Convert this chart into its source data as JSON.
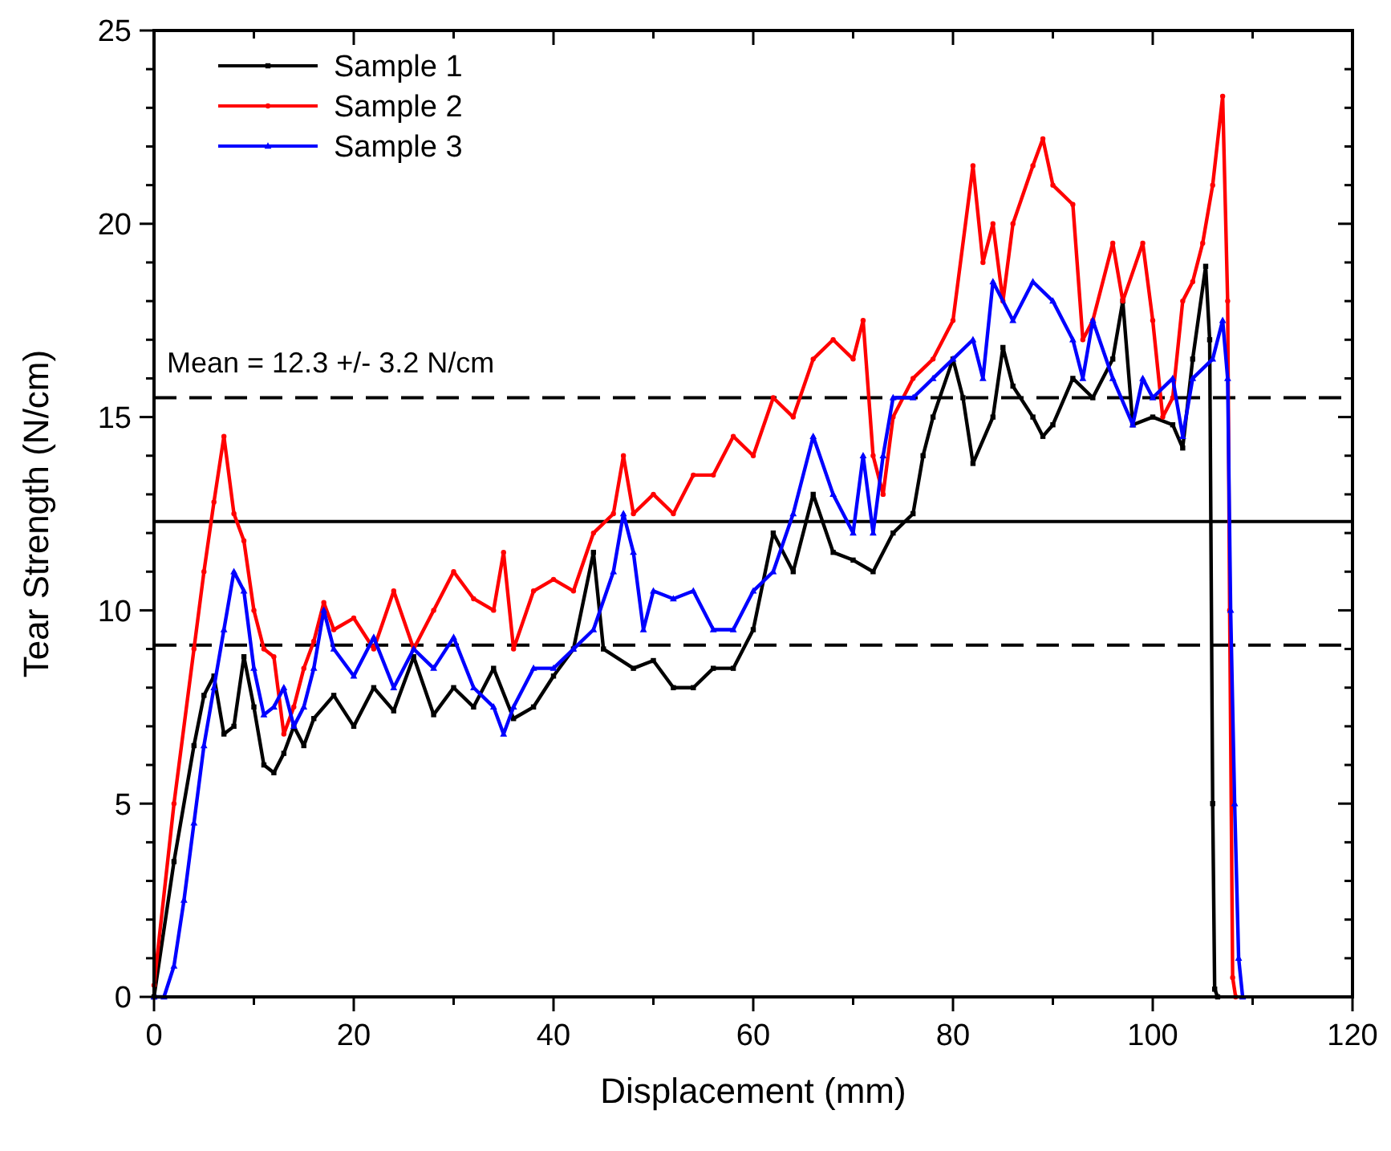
{
  "chart_data": {
    "type": "line",
    "xlabel": "Displacement (mm)",
    "ylabel": "Tear Strength (N/cm)",
    "xlim": [
      0,
      120
    ],
    "xticks": [
      0,
      {
        "value": 10,
        "label": null
      },
      20,
      {
        "value": 30,
        "label": null
      },
      40,
      {
        "value": 50,
        "label": null
      },
      60,
      {
        "value": 70,
        "label": null
      },
      80,
      {
        "value": 90,
        "label": null
      },
      100,
      {
        "value": 110,
        "label": null
      },
      120
    ],
    "ylim": [
      0,
      25
    ],
    "yticks": [
      0,
      {
        "value": 1,
        "label": null
      },
      {
        "value": 2,
        "label": null
      },
      {
        "value": 3,
        "label": null
      },
      {
        "value": 4,
        "label": null
      },
      5,
      {
        "value": 6,
        "label": null
      },
      {
        "value": 7,
        "label": null
      },
      {
        "value": 8,
        "label": null
      },
      {
        "value": 9,
        "label": null
      },
      10,
      {
        "value": 11,
        "label": null
      },
      {
        "value": 12,
        "label": null
      },
      {
        "value": 13,
        "label": null
      },
      {
        "value": 14,
        "label": null
      },
      15,
      {
        "value": 16,
        "label": null
      },
      {
        "value": 17,
        "label": null
      },
      {
        "value": 18,
        "label": null
      },
      {
        "value": 19,
        "label": null
      },
      20,
      {
        "value": 21,
        "label": null
      },
      {
        "value": 22,
        "label": null
      },
      {
        "value": 23,
        "label": null
      },
      {
        "value": 24,
        "label": null
      },
      25
    ],
    "legend": "top left",
    "grid": false,
    "annotations": [
      "Mean = 12.3 +/- 3.2 N/cm"
    ],
    "ref_lines": [
      {
        "axis": "y",
        "value": 12.3,
        "color": "#000000",
        "line_style": "solid"
      },
      {
        "axis": "y",
        "value": 15.5,
        "color": "#000000",
        "line_style": "dashed"
      },
      {
        "axis": "y",
        "value": 9.1,
        "color": "#000000",
        "line_style": "dashed"
      }
    ],
    "series": [
      {
        "name": "Sample 1",
        "color": "#000000",
        "marker": "square",
        "x": [
          0,
          2,
          4,
          5,
          6,
          7,
          8,
          9,
          10,
          11,
          12,
          13,
          14,
          15,
          16,
          18,
          20,
          22,
          24,
          26,
          28,
          30,
          32,
          34,
          36,
          38,
          40,
          42,
          44,
          45,
          48,
          50,
          52,
          54,
          56,
          58,
          60,
          62,
          64,
          66,
          68,
          70,
          72,
          74,
          76,
          77,
          78,
          80,
          81,
          82,
          84,
          85,
          86,
          88,
          89,
          90,
          92,
          94,
          96,
          97,
          98,
          100,
          102,
          103,
          104,
          105.3,
          105.7,
          106,
          106.2,
          106.5
        ],
        "values": [
          0,
          3.5,
          6.5,
          7.8,
          8.3,
          6.8,
          7,
          8.8,
          7.5,
          6,
          5.8,
          6.3,
          7,
          6.5,
          7.2,
          7.8,
          7,
          8,
          7.4,
          8.8,
          7.3,
          8,
          7.5,
          8.5,
          7.2,
          7.5,
          8.3,
          9,
          11.5,
          9,
          8.5,
          8.7,
          8,
          8,
          8.5,
          8.5,
          9.5,
          12,
          11,
          13,
          11.5,
          11.3,
          11,
          12,
          12.5,
          14,
          15,
          16.5,
          15.5,
          13.8,
          15,
          16.8,
          15.8,
          15,
          14.5,
          14.8,
          16,
          15.5,
          16.5,
          18,
          14.8,
          15,
          14.8,
          14.2,
          16.5,
          18.9,
          17,
          5,
          0.2,
          0
        ]
      },
      {
        "name": "Sample 2",
        "color": "#ff0000",
        "marker": "circle",
        "x": [
          0,
          2,
          4,
          5,
          6,
          7,
          8,
          9,
          10,
          11,
          12,
          13,
          14,
          15,
          16,
          17,
          18,
          20,
          22,
          24,
          26,
          28,
          30,
          32,
          34,
          35,
          36,
          38,
          40,
          42,
          44,
          46,
          47,
          48,
          50,
          52,
          54,
          56,
          58,
          60,
          62,
          64,
          66,
          68,
          70,
          71,
          72,
          73,
          74,
          76,
          78,
          80,
          82,
          83,
          84,
          85,
          86,
          88,
          89,
          90,
          92,
          93,
          94,
          96,
          97,
          99,
          100,
          101,
          102,
          103,
          104,
          105,
          106,
          107,
          107.5,
          107.7,
          108,
          108.3
        ],
        "values": [
          0.3,
          5,
          9,
          11,
          12.8,
          14.5,
          12.5,
          11.8,
          10,
          9,
          8.8,
          6.8,
          7.5,
          8.5,
          9.2,
          10.2,
          9.5,
          9.8,
          9,
          10.5,
          9,
          10,
          11,
          10.3,
          10,
          11.5,
          9,
          10.5,
          10.8,
          10.5,
          12,
          12.5,
          14,
          12.5,
          13,
          12.5,
          13.5,
          13.5,
          14.5,
          14,
          15.5,
          15,
          16.5,
          17,
          16.5,
          17.5,
          14,
          13,
          15,
          16,
          16.5,
          17.5,
          21.5,
          19,
          20,
          18,
          20,
          21.5,
          22.2,
          21,
          20.5,
          17,
          17.5,
          19.5,
          18,
          19.5,
          17.5,
          15,
          15.5,
          18,
          18.5,
          19.5,
          21,
          23.3,
          18,
          10,
          0.5,
          0
        ]
      },
      {
        "name": "Sample 3",
        "color": "#0000ff",
        "marker": "triangle",
        "x": [
          0,
          1,
          2,
          3,
          4,
          5,
          6,
          7,
          8,
          9,
          10,
          11,
          12,
          13,
          14,
          15,
          16,
          17,
          18,
          20,
          22,
          24,
          26,
          28,
          30,
          32,
          34,
          35,
          36,
          38,
          40,
          42,
          44,
          46,
          47,
          48,
          49,
          50,
          52,
          54,
          56,
          58,
          60,
          62,
          64,
          66,
          68,
          70,
          71,
          72,
          73,
          74,
          76,
          78,
          80,
          82,
          83,
          84,
          86,
          88,
          90,
          92,
          93,
          94,
          96,
          98,
          99,
          100,
          102,
          103,
          104,
          106,
          107,
          107.5,
          107.8,
          108.2,
          108.6,
          109
        ],
        "values": [
          0,
          0,
          0.8,
          2.5,
          4.5,
          6.5,
          8,
          9.5,
          11,
          10.5,
          8.5,
          7.3,
          7.5,
          8,
          7,
          7.5,
          8.5,
          10,
          9,
          8.3,
          9.3,
          8,
          9,
          8.5,
          9.3,
          8,
          7.5,
          6.8,
          7.5,
          8.5,
          8.5,
          9,
          9.5,
          11,
          12.5,
          11.5,
          9.5,
          10.5,
          10.3,
          10.5,
          9.5,
          9.5,
          10.5,
          11,
          12.5,
          14.5,
          13,
          12,
          14,
          12,
          14,
          15.5,
          15.5,
          16,
          16.5,
          17,
          16,
          18.5,
          17.5,
          18.5,
          18,
          17,
          16,
          17.5,
          16,
          14.8,
          16,
          15.5,
          16,
          14.5,
          16,
          16.5,
          17.5,
          16,
          10,
          5,
          1,
          0
        ]
      }
    ]
  }
}
